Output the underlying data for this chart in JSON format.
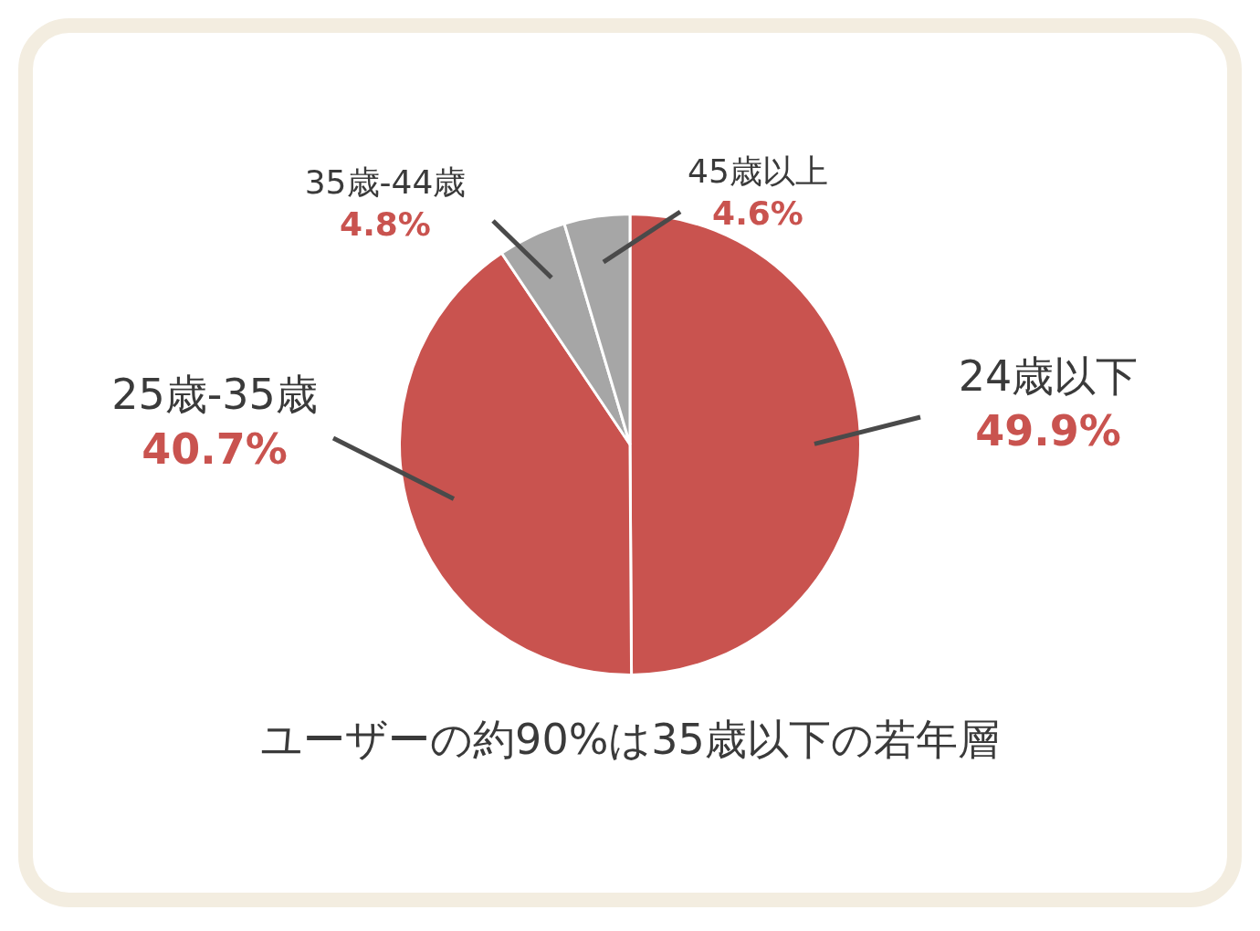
{
  "chart_data": {
    "type": "pie",
    "title": "ユーザーの約90%は35歳以下の若年層",
    "categories": [
      "24歳以下",
      "25歳-35歳",
      "35歳-44歳",
      "45歳以上"
    ],
    "values": [
      49.9,
      40.7,
      4.8,
      4.6
    ],
    "colors": [
      "#c9534f",
      "#c9534f",
      "#a6a6a6",
      "#a6a6a6"
    ],
    "value_labels": [
      "49.9%",
      "40.7%",
      "4.8%",
      "4.6%"
    ],
    "legend": false
  }
}
